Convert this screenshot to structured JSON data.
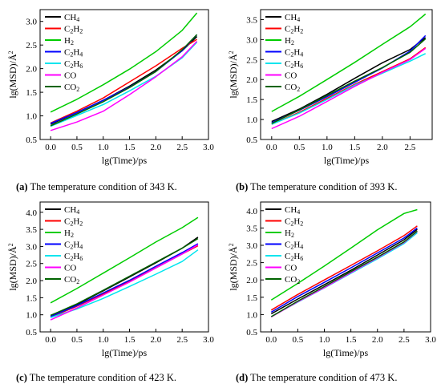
{
  "captions": [
    {
      "label": "(a)",
      "text": " The temperature condition of 343 K."
    },
    {
      "label": "(b)",
      "text": " The temperature condition of 393 K."
    },
    {
      "label": "(c)",
      "text": " The temperature condition of 423 K."
    },
    {
      "label": "(d)",
      "text": " The temperature condition of 473 K."
    }
  ],
  "legend_labels": [
    {
      "name": "CH4",
      "main": "CH",
      "sub": "4"
    },
    {
      "name": "C2H2",
      "main": "C",
      "sub": "2",
      "main2": "H",
      "sub2": "2"
    },
    {
      "name": "H2",
      "main": "H",
      "sub": "2"
    },
    {
      "name": "C2H4",
      "main": "C",
      "sub": "2",
      "main2": "H",
      "sub2": "4"
    },
    {
      "name": "C2H6",
      "main": "C",
      "sub": "2",
      "main2": "H",
      "sub2": "6"
    },
    {
      "name": "CO",
      "main": "CO"
    },
    {
      "name": "CO2",
      "main": "CO",
      "sub": "2"
    }
  ],
  "series_colors": {
    "CH4": "#000000",
    "C2H2": "#ff0000",
    "H2": "#00cc00",
    "C2H4": "#0000ff",
    "C2H6": "#00e5ee",
    "CO": "#ff00ff",
    "CO2": "#006400"
  },
  "chart_data": [
    {
      "type": "line",
      "title": "",
      "xlabel": "lg(Time)/ps",
      "ylabel": "lg(MSD)/Å",
      "ylabel_sup": "2",
      "xlim": [
        -0.2,
        3.0
      ],
      "ylim": [
        0.5,
        3.25
      ],
      "xticks": [
        "0.0",
        "0.5",
        "1.0",
        "1.5",
        "2.0",
        "2.5",
        "3.0"
      ],
      "yticks": [
        "0.5",
        "1.0",
        "1.5",
        "2.0",
        "2.5",
        "3.0"
      ],
      "legend_position": "top-left",
      "series": [
        {
          "name": "CH4",
          "x": [
            0,
            0.5,
            1.0,
            1.5,
            2.0,
            2.5,
            2.78
          ],
          "y": [
            0.82,
            1.07,
            1.33,
            1.63,
            1.97,
            2.38,
            2.68
          ]
        },
        {
          "name": "C2H2",
          "x": [
            0,
            0.5,
            1.0,
            1.5,
            2.0,
            2.5,
            2.78
          ],
          "y": [
            0.85,
            1.1,
            1.38,
            1.72,
            2.06,
            2.43,
            2.62
          ]
        },
        {
          "name": "H2",
          "x": [
            0,
            0.5,
            1.0,
            1.5,
            2.0,
            2.5,
            2.78
          ],
          "y": [
            1.08,
            1.35,
            1.66,
            1.99,
            2.36,
            2.81,
            3.18
          ]
        },
        {
          "name": "C2H4",
          "x": [
            0,
            0.5,
            1.0,
            1.5,
            2.0,
            2.5,
            2.78
          ],
          "y": [
            0.84,
            1.07,
            1.33,
            1.61,
            1.94,
            2.38,
            2.72
          ]
        },
        {
          "name": "C2H6",
          "x": [
            0,
            0.5,
            1.0,
            1.5,
            2.0,
            2.5,
            2.78
          ],
          "y": [
            0.78,
            1.01,
            1.24,
            1.53,
            1.84,
            2.23,
            2.56
          ]
        },
        {
          "name": "CO",
          "x": [
            0,
            0.5,
            1.0,
            1.5,
            2.0,
            2.5,
            2.78
          ],
          "y": [
            0.69,
            0.87,
            1.1,
            1.45,
            1.83,
            2.25,
            2.58
          ]
        },
        {
          "name": "CO2",
          "x": [
            0,
            0.5,
            1.0,
            1.5,
            2.0,
            2.5,
            2.78
          ],
          "y": [
            0.79,
            1.04,
            1.3,
            1.6,
            1.94,
            2.4,
            2.72
          ]
        }
      ]
    },
    {
      "type": "line",
      "title": "",
      "xlabel": "lg(Time)/ps",
      "ylabel": "lg(MSD)/Å",
      "ylabel_sup": "2",
      "xlim": [
        -0.2,
        2.9
      ],
      "ylim": [
        0.5,
        3.75
      ],
      "xticks": [
        "0.0",
        "0.5",
        "1.0",
        "1.5",
        "2.0",
        "2.5"
      ],
      "yticks": [
        "0.5",
        "1.0",
        "1.5",
        "2.0",
        "2.5",
        "3.0",
        "3.5"
      ],
      "legend_position": "top-left",
      "series": [
        {
          "name": "CH4",
          "x": [
            0,
            0.5,
            1.0,
            1.5,
            2.0,
            2.5,
            2.78
          ],
          "y": [
            0.95,
            1.26,
            1.63,
            2.03,
            2.42,
            2.75,
            3.05
          ]
        },
        {
          "name": "C2H2",
          "x": [
            0,
            0.5,
            1.0,
            1.5,
            2.0,
            2.5,
            2.78
          ],
          "y": [
            0.88,
            1.18,
            1.53,
            1.88,
            2.2,
            2.52,
            2.8
          ]
        },
        {
          "name": "H2",
          "x": [
            0,
            0.5,
            1.0,
            1.5,
            2.0,
            2.5,
            2.78
          ],
          "y": [
            1.2,
            1.58,
            2.0,
            2.43,
            2.88,
            3.32,
            3.64
          ]
        },
        {
          "name": "C2H4",
          "x": [
            0,
            0.5,
            1.0,
            1.5,
            2.0,
            2.5,
            2.78
          ],
          "y": [
            0.92,
            1.23,
            1.57,
            1.93,
            2.29,
            2.71,
            3.1
          ]
        },
        {
          "name": "C2H6",
          "x": [
            0,
            0.5,
            1.0,
            1.5,
            2.0,
            2.5,
            2.78
          ],
          "y": [
            0.88,
            1.16,
            1.5,
            1.86,
            2.16,
            2.46,
            2.65
          ]
        },
        {
          "name": "CO",
          "x": [
            0,
            0.5,
            1.0,
            1.5,
            2.0,
            2.5,
            2.78
          ],
          "y": [
            0.77,
            1.08,
            1.45,
            1.83,
            2.18,
            2.5,
            2.78
          ]
        },
        {
          "name": "CO2",
          "x": [
            0,
            0.5,
            1.0,
            1.5,
            2.0,
            2.5,
            2.78
          ],
          "y": [
            0.9,
            1.24,
            1.6,
            1.96,
            2.3,
            2.68,
            3.02
          ]
        }
      ]
    },
    {
      "type": "line",
      "title": "",
      "xlabel": "lg(Time)/ps",
      "ylabel": "lg(MSD)/Å",
      "ylabel_sup": "2",
      "xlim": [
        -0.2,
        3.0
      ],
      "ylim": [
        0.5,
        4.3
      ],
      "xticks": [
        "0.0",
        "0.5",
        "1.0",
        "1.5",
        "2.0",
        "2.5",
        "3.0"
      ],
      "yticks": [
        "0.5",
        "1.0",
        "1.5",
        "2.0",
        "2.5",
        "3.0",
        "3.5",
        "4.0"
      ],
      "legend_position": "top-left",
      "series": [
        {
          "name": "CH4",
          "x": [
            0,
            0.5,
            1.0,
            1.5,
            2.0,
            2.5,
            2.8
          ],
          "y": [
            0.98,
            1.3,
            1.7,
            2.11,
            2.52,
            2.95,
            3.27
          ]
        },
        {
          "name": "C2H2",
          "x": [
            0,
            0.5,
            1.0,
            1.5,
            2.0,
            2.5,
            2.8
          ],
          "y": [
            0.93,
            1.25,
            1.61,
            1.98,
            2.38,
            2.78,
            3.02
          ]
        },
        {
          "name": "H2",
          "x": [
            0,
            0.5,
            1.0,
            1.5,
            2.0,
            2.5,
            2.8
          ],
          "y": [
            1.35,
            1.77,
            2.22,
            2.67,
            3.13,
            3.55,
            3.85
          ]
        },
        {
          "name": "C2H4",
          "x": [
            0,
            0.5,
            1.0,
            1.5,
            2.0,
            2.5,
            2.8
          ],
          "y": [
            0.95,
            1.27,
            1.64,
            2.01,
            2.42,
            2.82,
            3.08
          ]
        },
        {
          "name": "C2H6",
          "x": [
            0,
            0.5,
            1.0,
            1.5,
            2.0,
            2.5,
            2.8
          ],
          "y": [
            0.92,
            1.17,
            1.48,
            1.83,
            2.19,
            2.56,
            2.9
          ]
        },
        {
          "name": "CO",
          "x": [
            0,
            0.5,
            1.0,
            1.5,
            2.0,
            2.5,
            2.8
          ],
          "y": [
            0.85,
            1.2,
            1.58,
            1.96,
            2.37,
            2.78,
            3.05
          ]
        },
        {
          "name": "CO2",
          "x": [
            0,
            0.5,
            1.0,
            1.5,
            2.0,
            2.5,
            2.8
          ],
          "y": [
            0.98,
            1.32,
            1.72,
            2.13,
            2.54,
            2.95,
            3.23
          ]
        }
      ]
    },
    {
      "type": "line",
      "title": "",
      "xlabel": "lg(Time)/ps",
      "ylabel": "lg(MSD)/Å",
      "ylabel_sup": "2",
      "xlim": [
        -0.2,
        3.0
      ],
      "ylim": [
        0.5,
        4.25
      ],
      "xticks": [
        "0.0",
        "0.5",
        "1.0",
        "1.5",
        "2.0",
        "2.5",
        "3.0"
      ],
      "yticks": [
        "0.5",
        "1.0",
        "1.5",
        "2.0",
        "2.5",
        "3.0",
        "3.5",
        "4.0"
      ],
      "legend_position": "top-left",
      "series": [
        {
          "name": "CH4",
          "x": [
            0,
            0.5,
            1.0,
            1.5,
            2.0,
            2.5,
            2.75
          ],
          "y": [
            1.02,
            1.45,
            1.86,
            2.28,
            2.72,
            3.16,
            3.46
          ]
        },
        {
          "name": "C2H2",
          "x": [
            0,
            0.5,
            1.0,
            1.5,
            2.0,
            2.5,
            2.75
          ],
          "y": [
            1.13,
            1.58,
            2.0,
            2.42,
            2.84,
            3.28,
            3.56
          ]
        },
        {
          "name": "H2",
          "x": [
            0,
            0.5,
            1.0,
            1.5,
            2.0,
            2.5,
            2.75
          ],
          "y": [
            1.42,
            1.9,
            2.4,
            2.92,
            3.45,
            3.92,
            4.03
          ]
        },
        {
          "name": "C2H4",
          "x": [
            0,
            0.5,
            1.0,
            1.5,
            2.0,
            2.5,
            2.75
          ],
          "y": [
            1.07,
            1.52,
            1.93,
            2.35,
            2.78,
            3.21,
            3.5
          ]
        },
        {
          "name": "C2H6",
          "x": [
            0,
            0.5,
            1.0,
            1.5,
            2.0,
            2.5,
            2.75
          ],
          "y": [
            0.94,
            1.36,
            1.77,
            2.19,
            2.61,
            3.05,
            3.36
          ]
        },
        {
          "name": "CO",
          "x": [
            0,
            0.5,
            1.0,
            1.5,
            2.0,
            2.5,
            2.75
          ],
          "y": [
            0.93,
            1.37,
            1.78,
            2.21,
            2.64,
            3.08,
            3.4
          ]
        },
        {
          "name": "CO2",
          "x": [
            0,
            0.5,
            1.0,
            1.5,
            2.0,
            2.5,
            2.75
          ],
          "y": [
            0.94,
            1.39,
            1.81,
            2.24,
            2.66,
            3.1,
            3.41
          ]
        }
      ]
    }
  ]
}
